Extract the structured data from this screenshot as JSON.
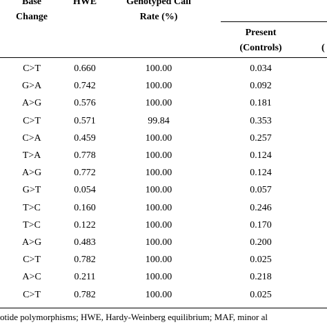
{
  "table": {
    "headers": {
      "base_change": [
        "Base",
        "Change"
      ],
      "hwe": "HWE",
      "call_rate": [
        "Genotyped Call",
        "Rate (%)"
      ],
      "present": [
        "Present",
        "(Controls)"
      ],
      "cut_off_next": "("
    },
    "rows": [
      {
        "base": "C>T",
        "hwe": "0.660",
        "rate": "100.00",
        "present": "0.034"
      },
      {
        "base": "G>A",
        "hwe": "0.742",
        "rate": "100.00",
        "present": "0.092"
      },
      {
        "base": "A>G",
        "hwe": "0.576",
        "rate": "100.00",
        "present": "0.181"
      },
      {
        "base": "C>T",
        "hwe": "0.571",
        "rate": "99.84",
        "present": "0.353"
      },
      {
        "base": "C>A",
        "hwe": "0.459",
        "rate": "100.00",
        "present": "0.257"
      },
      {
        "base": "T>A",
        "hwe": "0.778",
        "rate": "100.00",
        "present": "0.124"
      },
      {
        "base": "A>G",
        "hwe": "0.772",
        "rate": "100.00",
        "present": "0.124"
      },
      {
        "base": "G>T",
        "hwe": "0.054",
        "rate": "100.00",
        "present": "0.057"
      },
      {
        "base": "T>C",
        "hwe": "0.160",
        "rate": "100.00",
        "present": "0.246"
      },
      {
        "base": "T>C",
        "hwe": "0.122",
        "rate": "100.00",
        "present": "0.170"
      },
      {
        "base": "A>G",
        "hwe": "0.483",
        "rate": "100.00",
        "present": "0.200"
      },
      {
        "base": "C>T",
        "hwe": "0.782",
        "rate": "100.00",
        "present": "0.025"
      },
      {
        "base": "A>C",
        "hwe": "0.211",
        "rate": "100.00",
        "present": "0.218"
      },
      {
        "base": "C>T",
        "hwe": "0.782",
        "rate": "100.00",
        "present": "0.025"
      }
    ]
  },
  "footnote": "otide polymorphisms; HWE, Hardy-Weinberg equilibrium; MAF, minor al"
}
